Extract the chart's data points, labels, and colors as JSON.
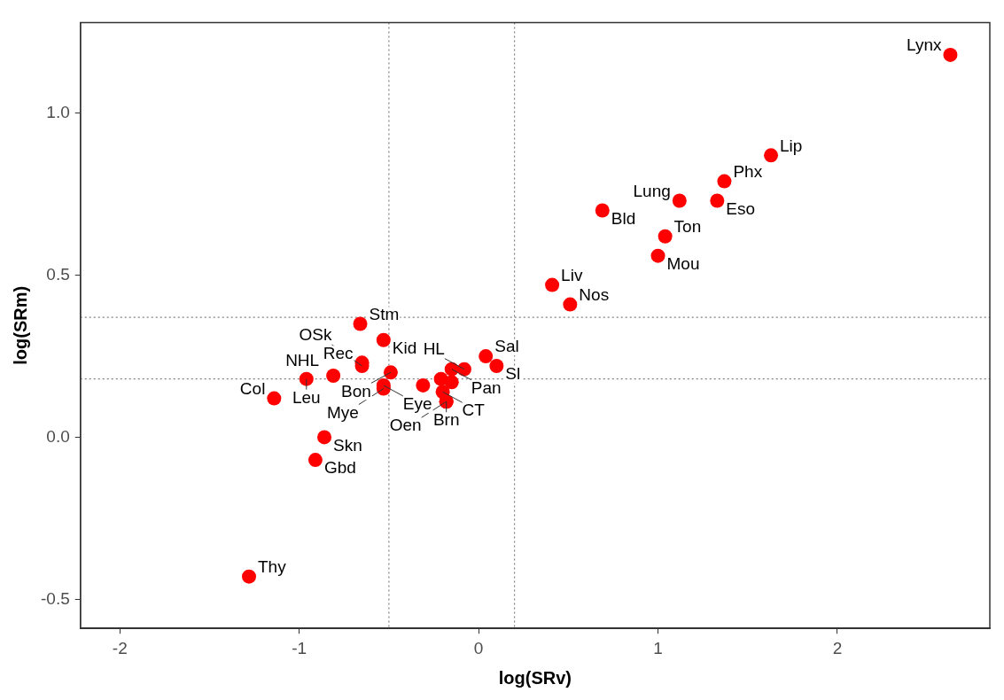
{
  "chart_data": {
    "type": "scatter",
    "xlabel": "log(SRv)",
    "ylabel": "log(SRm)",
    "xlim": [
      -2.22,
      2.85
    ],
    "ylim": [
      -0.59,
      1.28
    ],
    "xticks": [
      -2,
      -1,
      0,
      1,
      2
    ],
    "yticks": [
      {
        "value": -0.5,
        "label": "-0.5"
      },
      {
        "value": 0,
        "label": "0.0"
      },
      {
        "value": 0.5,
        "label": "0.5"
      },
      {
        "value": 1,
        "label": "1.0"
      }
    ],
    "grid": false,
    "legend": false,
    "marker": "circle",
    "ref_lines": [
      {
        "axis": "x",
        "value": -0.5,
        "line_style": "dotted",
        "color": "#808080"
      },
      {
        "axis": "x",
        "value": 0.2,
        "line_style": "dotted",
        "color": "#808080"
      },
      {
        "axis": "y",
        "value": 0.37,
        "line_style": "dotted",
        "color": "#808080"
      },
      {
        "axis": "y",
        "value": 0.18,
        "line_style": "dotted",
        "color": "#808080"
      }
    ],
    "series": [
      {
        "color": "#ff0000",
        "x": [
          2.63,
          1.63,
          1.37,
          1.12,
          1.33,
          0.69,
          1.04,
          1.0,
          0.41,
          0.51,
          -0.66,
          -0.53,
          0.04,
          0.1,
          -0.15,
          -0.08,
          -0.65,
          -0.65,
          -0.49,
          -0.81,
          -0.96,
          -1.14,
          -0.53,
          -0.53,
          -0.31,
          -0.21,
          -0.15,
          -0.2,
          -0.18,
          -0.18,
          -0.86,
          -0.91,
          -1.28
        ],
        "values": [
          1.18,
          0.87,
          0.79,
          0.73,
          0.73,
          0.7,
          0.62,
          0.56,
          0.47,
          0.41,
          0.35,
          0.3,
          0.25,
          0.22,
          0.21,
          0.21,
          0.23,
          0.22,
          0.2,
          0.19,
          0.18,
          0.12,
          0.16,
          0.15,
          0.16,
          0.18,
          0.17,
          0.14,
          0.11,
          0.11,
          0.0,
          -0.07,
          -0.43
        ],
        "value_labels": [
          "Lynx",
          "Lip",
          "Phx",
          "Lung",
          "Eso",
          "Bld",
          "Ton",
          "Mou",
          "Liv",
          "Nos",
          "Stm",
          "Kid",
          "Sal",
          "Sl",
          "Pan",
          "HL",
          "Rec",
          "OSk",
          "Bon",
          "NHL",
          "Leu",
          "Col",
          "Eye",
          "Mye",
          null,
          null,
          null,
          "CT",
          "Brn",
          "Oen",
          "Skn",
          "Gbd",
          "Thy"
        ]
      }
    ]
  }
}
